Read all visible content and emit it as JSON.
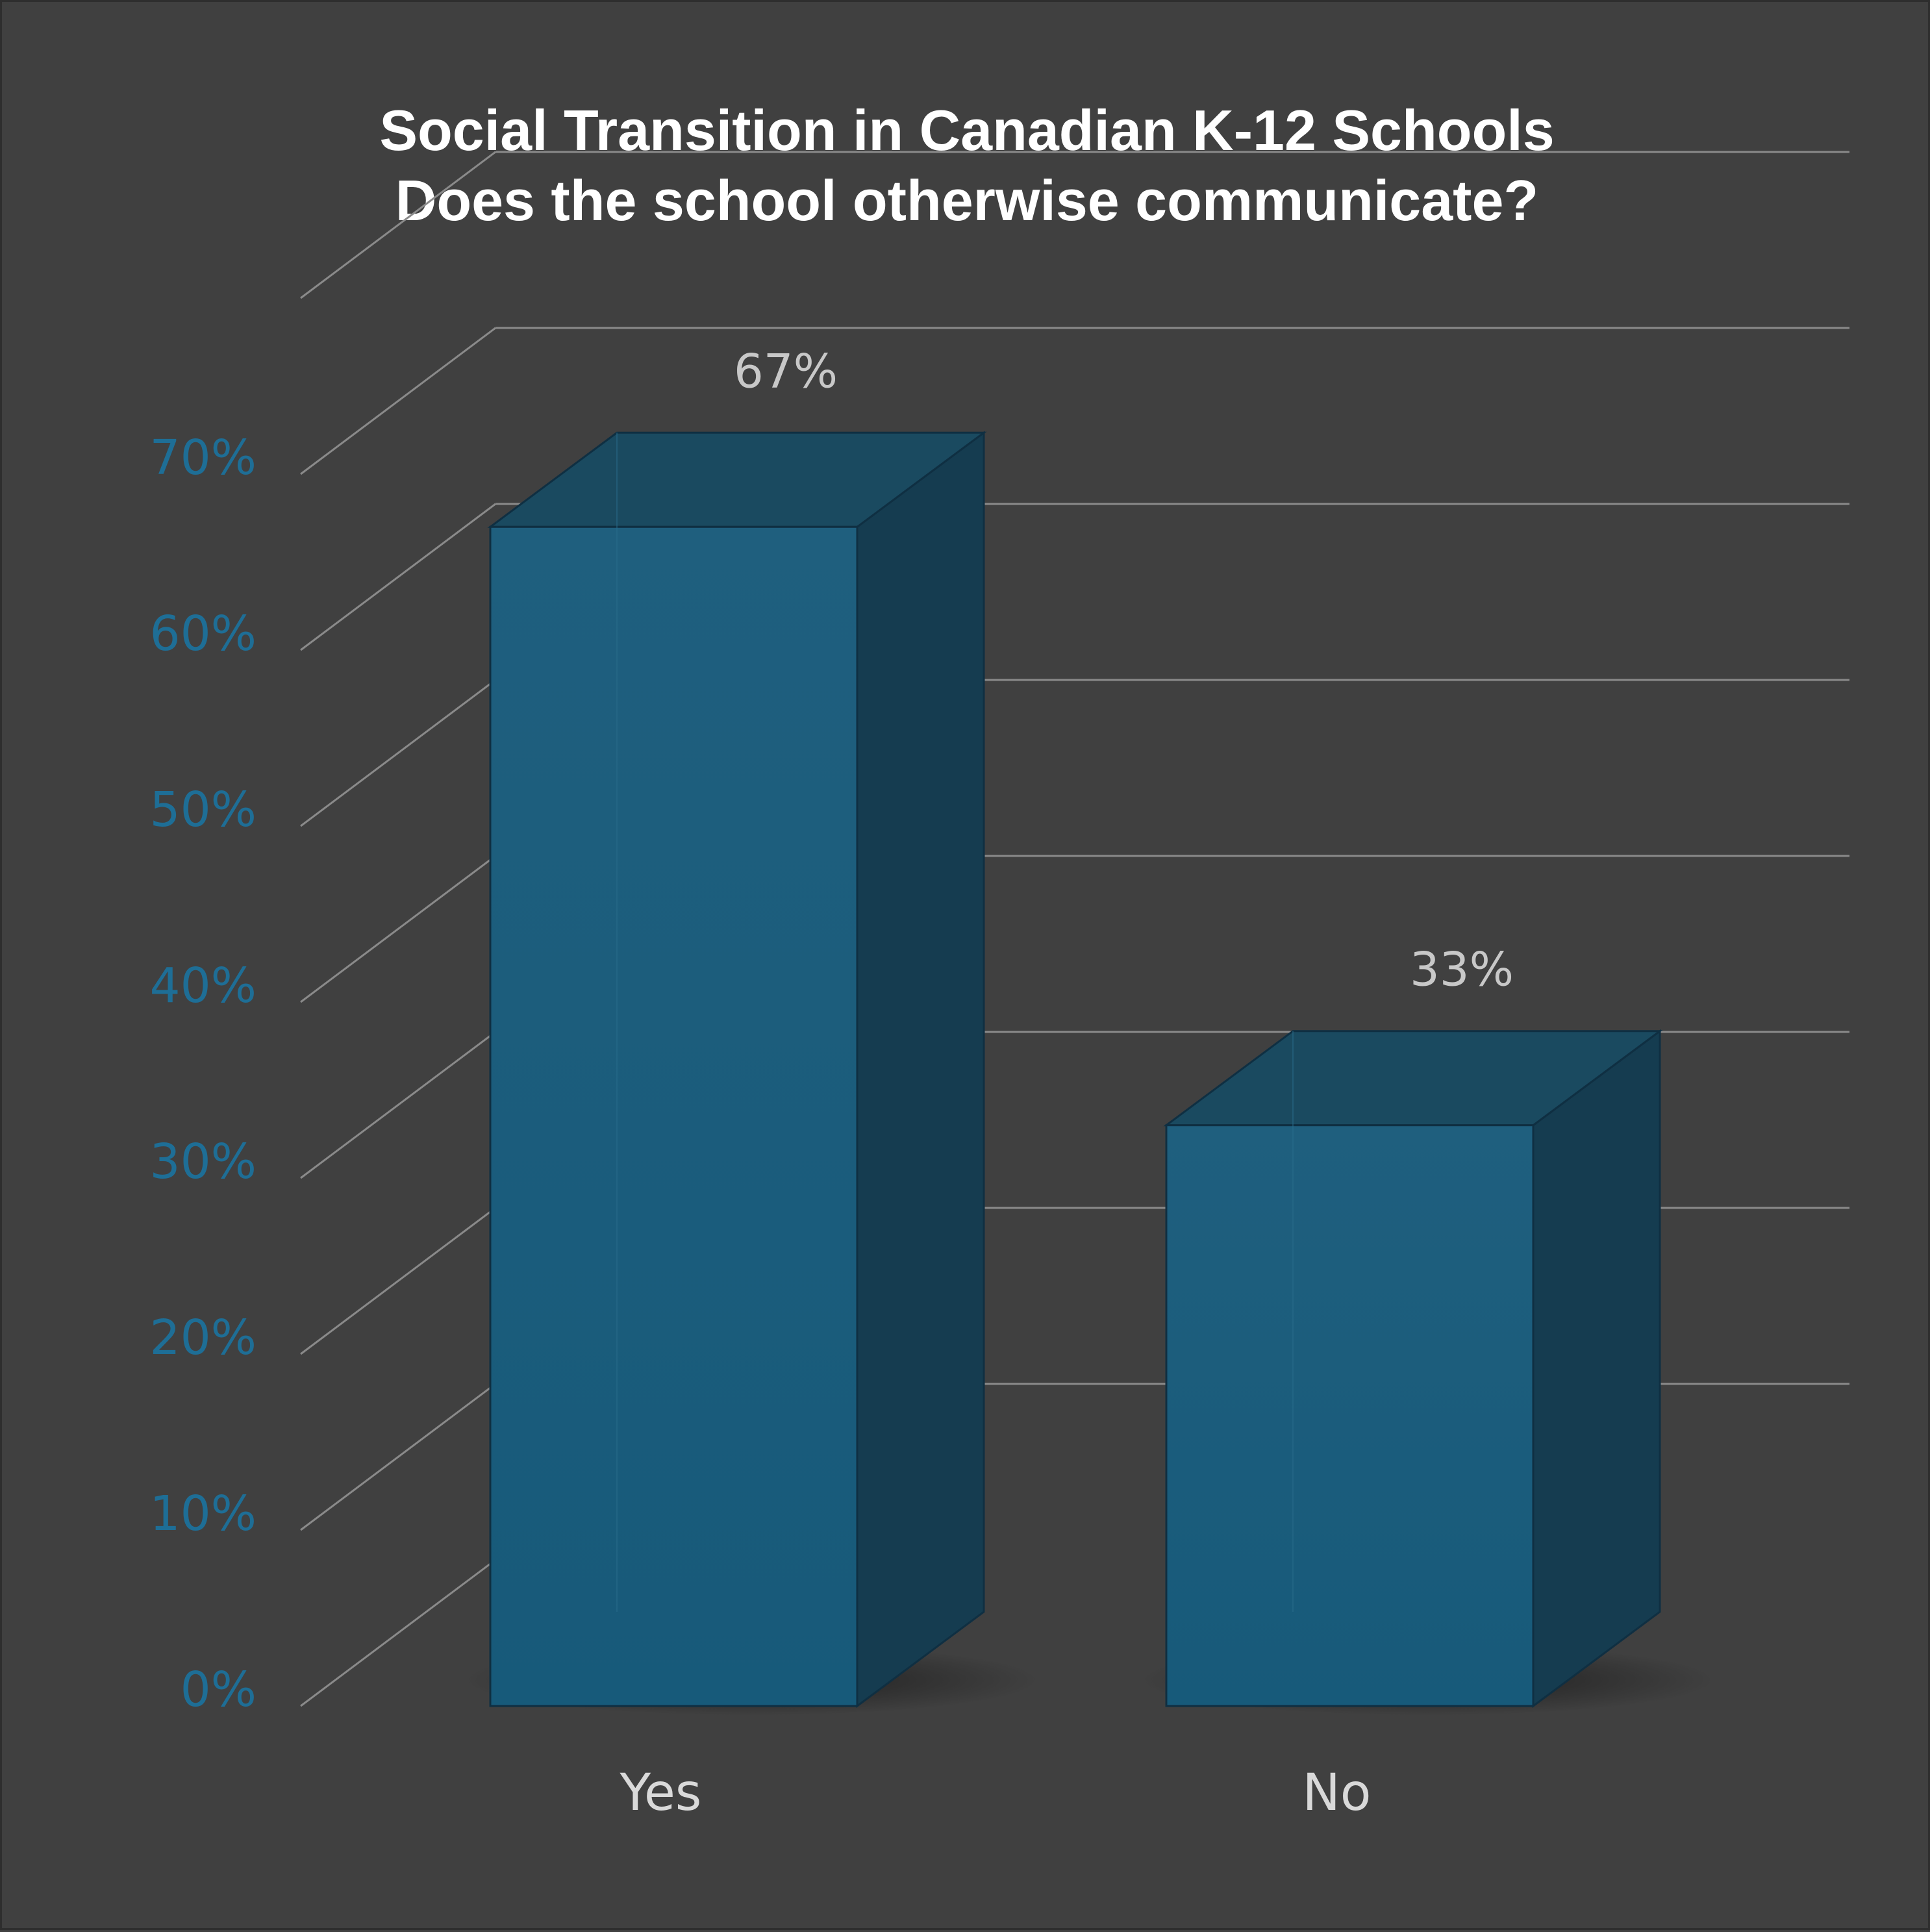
{
  "chart_data": {
    "type": "bar",
    "title": "Social Transition in Canadian K-12 Schools",
    "subtitle": "Does the school otherwise communicate?",
    "categories": [
      "Yes",
      "No"
    ],
    "values": [
      67,
      33
    ],
    "value_labels": [
      "67%",
      "33%"
    ],
    "ylim": [
      0,
      70
    ],
    "yticks": [
      0,
      10,
      20,
      30,
      40,
      50,
      60,
      70
    ],
    "ytick_labels": [
      "0%",
      "10%",
      "20%",
      "30%",
      "40%",
      "50%",
      "60%",
      "70%"
    ],
    "xlabel": "",
    "ylabel": "",
    "grid": true,
    "style": "3d-column"
  },
  "colors": {
    "background": "#404040",
    "bar_front": "#1e5f7e",
    "bar_top": "#1a4a60",
    "bar_side": "#153c50",
    "bar_edge": "#0f2f42",
    "grid": "#8a8a8a",
    "ytick": "#1e6e96",
    "xtick": "#d9d9d9",
    "value_label": "#c8c8c8",
    "title": "#ffffff"
  }
}
